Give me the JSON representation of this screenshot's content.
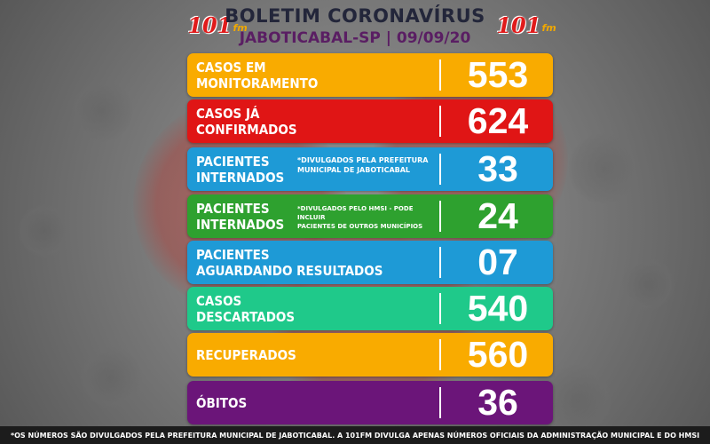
{
  "header": {
    "title": "BOLETIM CORONAVÍRUS",
    "subtitle": "JABOTICABAL-SP | 09/09/20",
    "logo_main": "101",
    "logo_sub": "fm"
  },
  "rows": [
    {
      "label": [
        "CASOS EM",
        "MONITORAMENTO"
      ],
      "value": "553",
      "color": "#f9ab00",
      "note": []
    },
    {
      "label": [
        "CASOS JÁ",
        "CONFIRMADOS"
      ],
      "value": "624",
      "color": "#e01515",
      "note": []
    },
    {
      "label": [
        "PACIENTES",
        "INTERNADOS"
      ],
      "value": "33",
      "color": "#1e9ad6",
      "note": [
        "*DIVULGADOS PELA PREFEITURA",
        "MUNICIPAL DE JABOTICABAL"
      ]
    },
    {
      "label": [
        "PACIENTES",
        "INTERNADOS"
      ],
      "value": "24",
      "color": "#2ea12f",
      "note": [
        "*DIVULGADOS PELO HMSI - PODE INCLUIR",
        "PACIENTES DE OUTROS MUNICÍPIOS"
      ]
    },
    {
      "label": [
        "PACIENTES",
        "AGUARDANDO RESULTADOS"
      ],
      "value": "07",
      "color": "#1e9ad6",
      "note": []
    },
    {
      "label": [
        "CASOS",
        "DESCARTADOS"
      ],
      "value": "540",
      "color": "#1fc98a",
      "note": []
    },
    {
      "label": [
        "RECUPERADOS"
      ],
      "value": "560",
      "color": "#f9ab00",
      "note": []
    },
    {
      "label": [
        "ÓBITOS"
      ],
      "value": "36",
      "color": "#6b1579",
      "note": []
    }
  ],
  "footer": {
    "text": "*OS NÚMEROS SÃO DIVULGADOS PELA PREFEITURA MUNICIPAL DE JABOTICABAL. A 101FM DIVULGA APENAS NÚMEROS OFICIAIS DA ADMINISTRAÇÃO MUNICIPAL E DO HMSI"
  }
}
